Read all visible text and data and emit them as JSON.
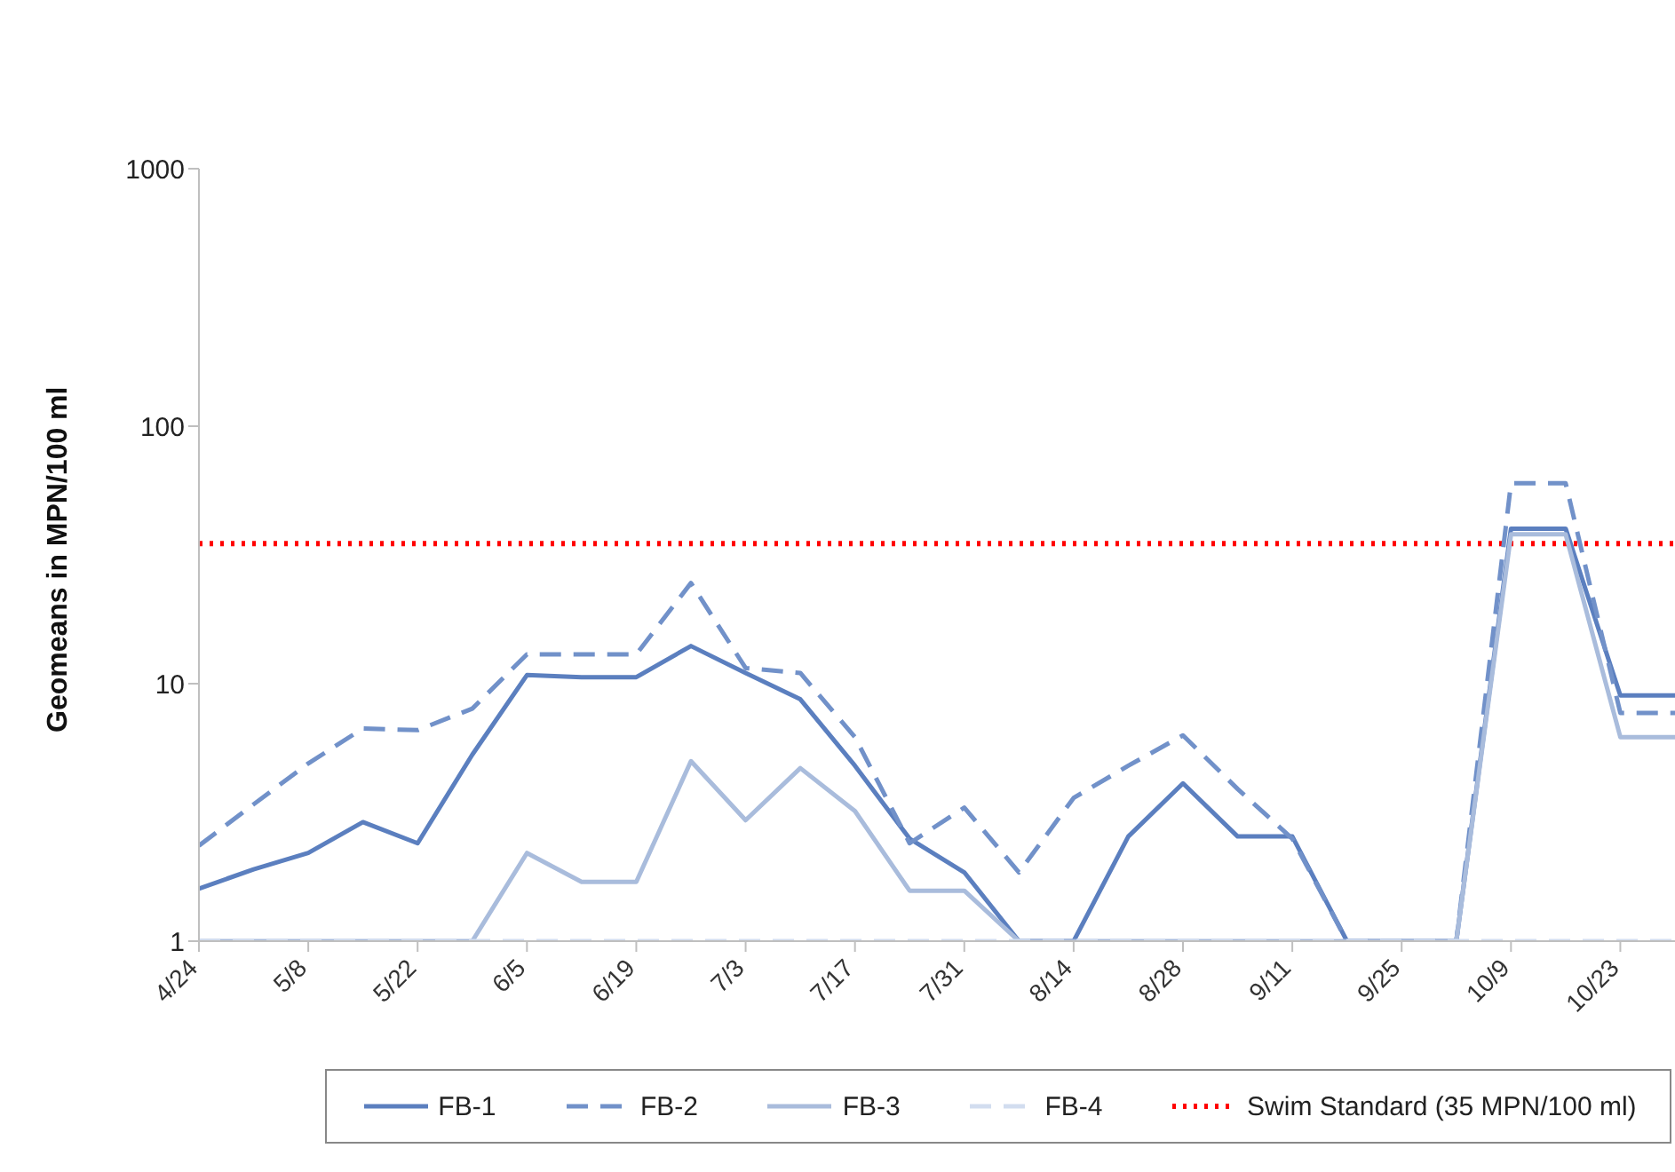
{
  "chart_data": {
    "type": "line",
    "ylabel": "Geomeans in MPN/100 ml",
    "log": "y",
    "ylim": [
      1,
      1000
    ],
    "yticks": [
      1,
      10,
      100,
      1000
    ],
    "legend": "bottom",
    "grid": false,
    "marker": "none",
    "xlim": [
      "--04-24",
      "--10-30"
    ],
    "xticks": [
      {
        "value": "--04-24",
        "label": "4/24"
      },
      {
        "value": "--05-08",
        "label": "5/8"
      },
      {
        "value": "--05-22",
        "label": "5/22"
      },
      {
        "value": "--06-05",
        "label": "6/5"
      },
      {
        "value": "--06-19",
        "label": "6/19"
      },
      {
        "value": "--07-03",
        "label": "7/3"
      },
      {
        "value": "--07-17",
        "label": "7/17"
      },
      {
        "value": "--07-31",
        "label": "7/31"
      },
      {
        "value": "--08-14",
        "label": "8/14"
      },
      {
        "value": "--08-28",
        "label": "8/28"
      },
      {
        "value": "--09-11",
        "label": "9/11"
      },
      {
        "value": "--09-25",
        "label": "9/25"
      },
      {
        "value": "--10-09",
        "label": "10/9"
      },
      {
        "value": "--10-23",
        "label": "10/23"
      }
    ],
    "x": [
      "--04-24",
      "--05-01",
      "--05-08",
      "--05-15",
      "--05-22",
      "--05-29",
      "--06-05",
      "--06-12",
      "--06-19",
      "--06-26",
      "--07-03",
      "--07-10",
      "--07-17",
      "--07-24",
      "--07-31",
      "--08-07",
      "--08-14",
      "--08-21",
      "--08-28",
      "--09-04",
      "--09-11",
      "--09-18",
      "--09-25",
      "--10-02",
      "--10-09",
      "--10-16",
      "--10-23",
      "--10-30"
    ],
    "series": [
      {
        "name": "FB-1",
        "color": "#5b7fbf",
        "line_style": "solid",
        "values": [
          1.6,
          1.9,
          2.2,
          2.9,
          2.4,
          5.3,
          10.8,
          10.6,
          10.6,
          14,
          11,
          8.7,
          4.8,
          2.5,
          1.85,
          1,
          1,
          2.55,
          4.1,
          2.55,
          2.55,
          1,
          1,
          1,
          40,
          40,
          9,
          9
        ]
      },
      {
        "name": "FB-2",
        "color": "#7191c9",
        "line_style": "dashed",
        "values": [
          2.35,
          3.4,
          4.9,
          6.7,
          6.6,
          8,
          13,
          13,
          13,
          24.6,
          11.5,
          11,
          6.2,
          2.4,
          3.3,
          1.85,
          3.6,
          4.8,
          6.3,
          3.9,
          2.5,
          1,
          1,
          1,
          60,
          60,
          7.7,
          7.7
        ]
      },
      {
        "name": "FB-3",
        "color": "#a9bcdc",
        "line_style": "solid",
        "values": [
          1,
          1,
          1,
          1,
          1,
          1,
          2.2,
          1.7,
          1.7,
          5,
          2.95,
          4.7,
          3.2,
          1.57,
          1.57,
          1,
          1,
          1,
          1,
          1,
          1,
          1,
          1,
          1,
          38,
          38,
          6.2,
          6.2
        ]
      },
      {
        "name": "FB-4",
        "color": "#d2ddef",
        "line_style": "dashed",
        "values": [
          1,
          1,
          1,
          1,
          1,
          1,
          1,
          1,
          1,
          1,
          1,
          1,
          1,
          1,
          1,
          1,
          1,
          1,
          1,
          1,
          1,
          1,
          1,
          1,
          1,
          1,
          1,
          1
        ]
      }
    ],
    "ref_lines": [
      {
        "axis": "y",
        "value": 35,
        "label": "Swim Standard (35 MPN/100 ml)",
        "color": "#ff0000",
        "line_style": "dotted"
      }
    ]
  }
}
